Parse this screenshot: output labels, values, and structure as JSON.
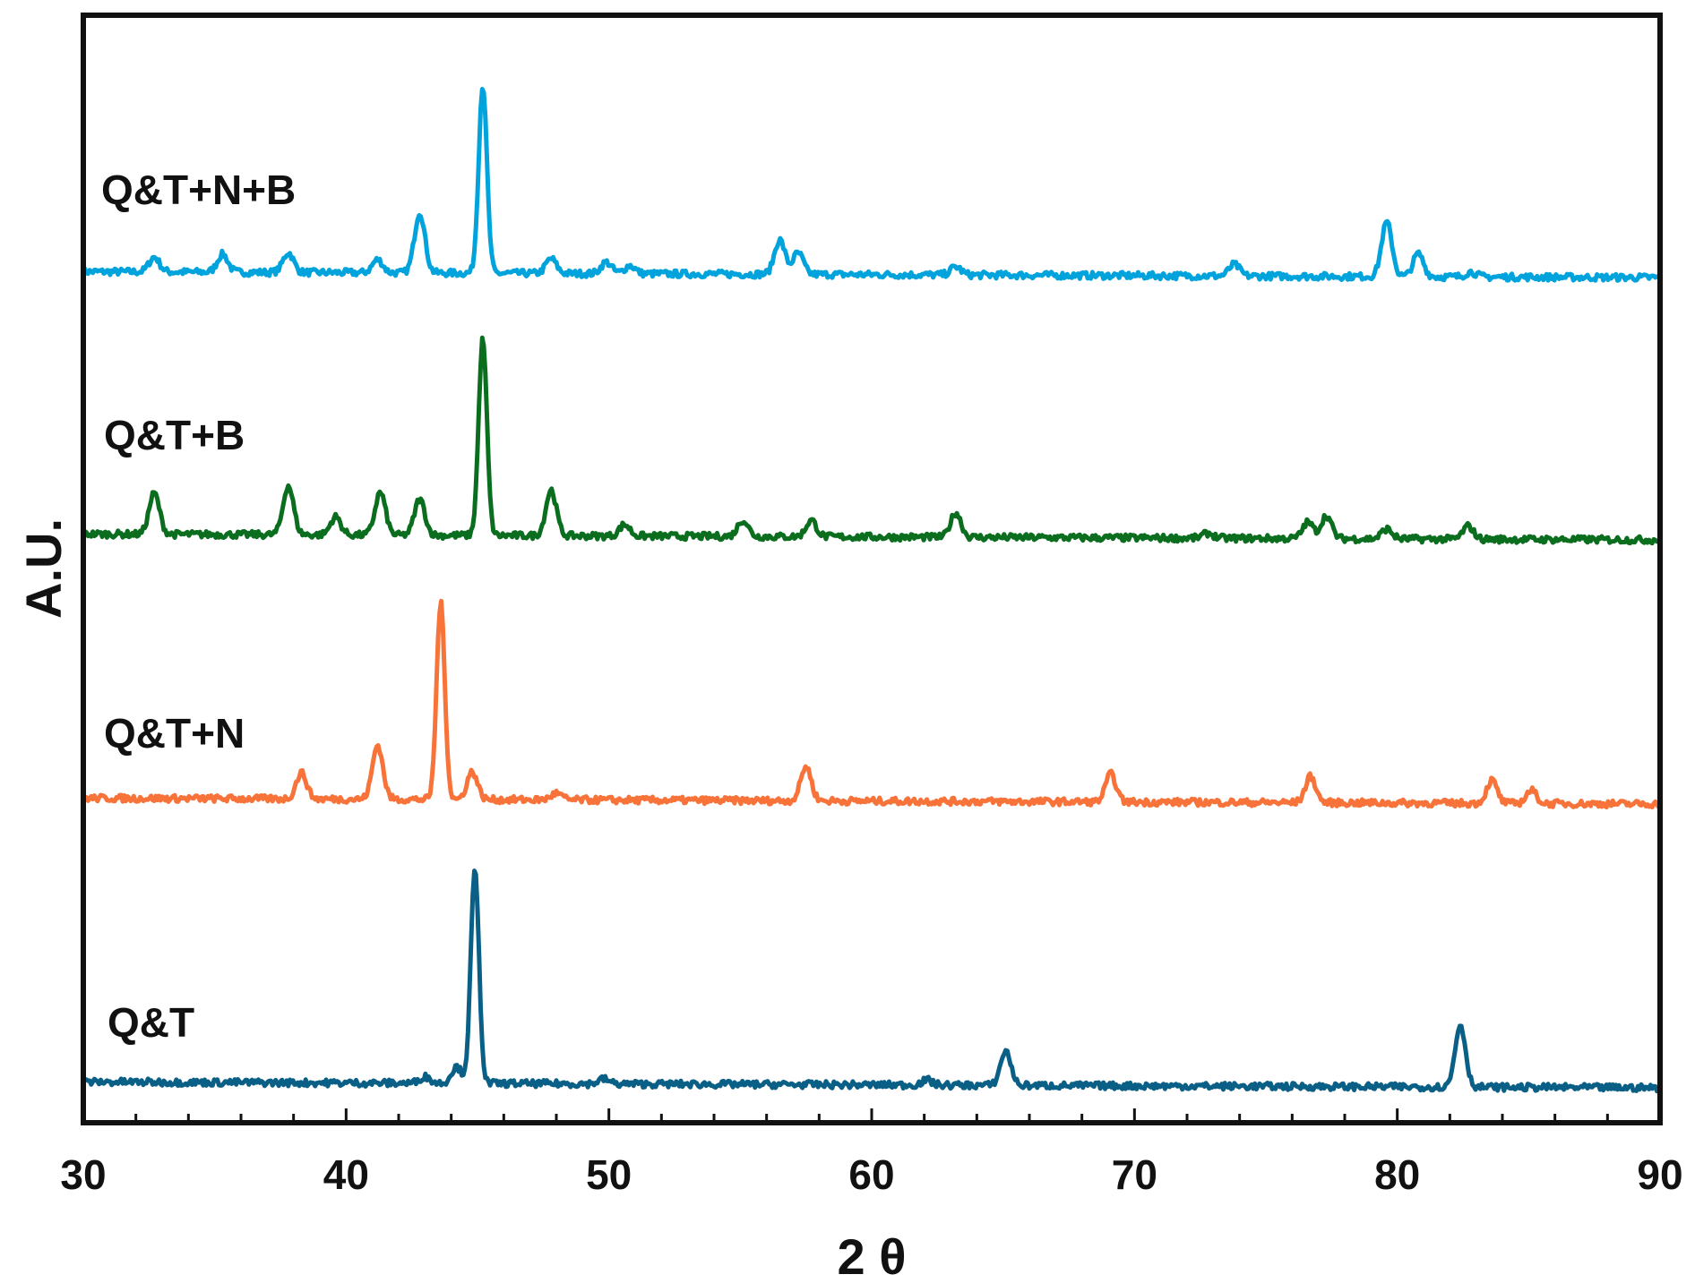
{
  "chart_data": {
    "type": "line",
    "xlabel": "2 θ",
    "ylabel": "A.U.",
    "xlim": [
      30,
      90
    ],
    "x_ticks": [
      "30",
      "40",
      "50",
      "60",
      "70",
      "80",
      "90"
    ],
    "y_ticks_shown": false,
    "grid": false,
    "legend": "none (series labeled inline above each trace)",
    "y_unit": "arbitrary units, traces vertically offset",
    "series": [
      {
        "name": "Q&T+N+B",
        "color": "#00a3db",
        "offset": 300,
        "peaks": [
          {
            "x": 32.7,
            "h": 9
          },
          {
            "x": 35.3,
            "h": 11
          },
          {
            "x": 37.8,
            "h": 12
          },
          {
            "x": 41.2,
            "h": 8
          },
          {
            "x": 42.8,
            "h": 37
          },
          {
            "x": 45.2,
            "h": 115
          },
          {
            "x": 47.8,
            "h": 9
          },
          {
            "x": 49.9,
            "h": 7
          },
          {
            "x": 50.8,
            "h": 5
          },
          {
            "x": 56.5,
            "h": 21
          },
          {
            "x": 57.2,
            "h": 13
          },
          {
            "x": 63.2,
            "h": 5
          },
          {
            "x": 73.8,
            "h": 7
          },
          {
            "x": 79.6,
            "h": 33
          },
          {
            "x": 80.8,
            "h": 14
          },
          {
            "x": 82.8,
            "h": 3
          }
        ]
      },
      {
        "name": "Q&T+B",
        "color": "#0b6e1f",
        "offset": 200,
        "peaks": [
          {
            "x": 32.7,
            "h": 25
          },
          {
            "x": 37.8,
            "h": 30
          },
          {
            "x": 39.6,
            "h": 11
          },
          {
            "x": 41.3,
            "h": 26
          },
          {
            "x": 42.8,
            "h": 22
          },
          {
            "x": 45.2,
            "h": 120
          },
          {
            "x": 47.8,
            "h": 28
          },
          {
            "x": 50.6,
            "h": 7
          },
          {
            "x": 55.1,
            "h": 10
          },
          {
            "x": 57.7,
            "h": 10
          },
          {
            "x": 63.2,
            "h": 15
          },
          {
            "x": 72.8,
            "h": 3
          },
          {
            "x": 76.6,
            "h": 10
          },
          {
            "x": 77.3,
            "h": 14
          },
          {
            "x": 79.6,
            "h": 6
          },
          {
            "x": 82.7,
            "h": 8
          }
        ]
      },
      {
        "name": "Q&T+N",
        "color": "#f7733a",
        "offset": 100,
        "peaks": [
          {
            "x": 38.3,
            "h": 16
          },
          {
            "x": 41.2,
            "h": 33
          },
          {
            "x": 43.6,
            "h": 120
          },
          {
            "x": 44.8,
            "h": 17
          },
          {
            "x": 48.0,
            "h": 4
          },
          {
            "x": 57.5,
            "h": 21
          },
          {
            "x": 69.1,
            "h": 17
          },
          {
            "x": 76.7,
            "h": 16
          },
          {
            "x": 83.6,
            "h": 14
          },
          {
            "x": 85.1,
            "h": 8
          }
        ]
      },
      {
        "name": "Q&T",
        "color": "#0a5f86",
        "offset": 0,
        "peaks": [
          {
            "x": 43.0,
            "h": 4
          },
          {
            "x": 44.2,
            "h": 10
          },
          {
            "x": 44.9,
            "h": 130
          },
          {
            "x": 49.8,
            "h": 3
          },
          {
            "x": 62.1,
            "h": 3
          },
          {
            "x": 65.1,
            "h": 21
          },
          {
            "x": 82.4,
            "h": 38
          }
        ]
      }
    ]
  }
}
